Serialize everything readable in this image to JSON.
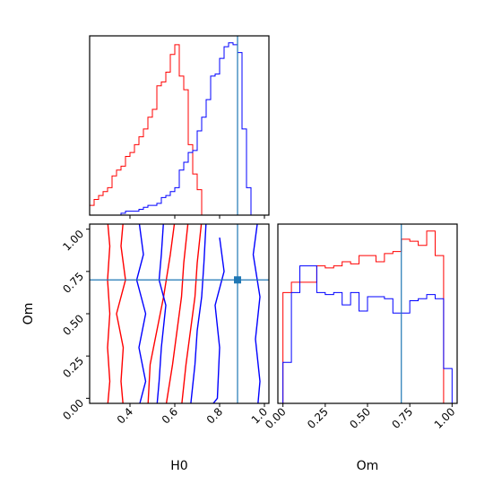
{
  "chart_data": {
    "type": "corner",
    "parameters": [
      "H0",
      "Om"
    ],
    "truth": {
      "H0": 0.88,
      "Om": 0.7
    },
    "colors": {
      "red_series": "#ff0000",
      "blue_series": "#0000ff",
      "truth": "#1f77b4"
    },
    "axes": {
      "h0_hist": {
        "xlim": [
          0.22,
          1.02
        ],
        "bin_edges": [
          0.22,
          0.24,
          0.26,
          0.28,
          0.3,
          0.32,
          0.34,
          0.36,
          0.38,
          0.4,
          0.42,
          0.44,
          0.46,
          0.48,
          0.5,
          0.52,
          0.54,
          0.56,
          0.58,
          0.6,
          0.62,
          0.64,
          0.66,
          0.68,
          0.7,
          0.72,
          0.74,
          0.76,
          0.78,
          0.8,
          0.82,
          0.84,
          0.86,
          0.88,
          0.9,
          0.92,
          0.94,
          0.96,
          0.98,
          1.0
        ],
        "series": [
          {
            "color": "red",
            "counts": [
              0.05,
              0.08,
              0.1,
              0.12,
              0.14,
              0.2,
              0.23,
              0.25,
              0.3,
              0.32,
              0.36,
              0.4,
              0.44,
              0.5,
              0.54,
              0.66,
              0.68,
              0.73,
              0.82,
              0.87,
              0.71,
              0.64,
              0.36,
              0.21,
              0.13,
              0.0,
              0.0,
              0.0,
              0.0,
              0.0,
              0.0,
              0.0,
              0.0,
              0.0,
              0.0,
              0.0,
              0.0,
              0.0,
              0.0
            ]
          },
          {
            "color": "blue",
            "counts": [
              0.0,
              0.0,
              0.0,
              0.0,
              0.0,
              0.0,
              0.0,
              0.01,
              0.02,
              0.02,
              0.02,
              0.03,
              0.04,
              0.05,
              0.05,
              0.06,
              0.09,
              0.1,
              0.12,
              0.14,
              0.23,
              0.27,
              0.32,
              0.33,
              0.43,
              0.5,
              0.59,
              0.71,
              0.72,
              0.8,
              0.86,
              0.88,
              0.87,
              0.83,
              0.44,
              0.14,
              0.0,
              0.0,
              0.0
            ]
          }
        ]
      },
      "om_hist": {
        "xlim": [
          -0.03,
          1.03
        ],
        "bin_edges": [
          0.0,
          0.05,
          0.1,
          0.15,
          0.2,
          0.25,
          0.3,
          0.35,
          0.4,
          0.45,
          0.5,
          0.55,
          0.6,
          0.65,
          0.7,
          0.75,
          0.8,
          0.85,
          0.9,
          0.95,
          1.0
        ],
        "series": [
          {
            "color": "red",
            "counts": [
              0.54,
              0.59,
              0.59,
              0.59,
              0.67,
              0.66,
              0.67,
              0.69,
              0.68,
              0.72,
              0.72,
              0.69,
              0.73,
              0.74,
              0.8,
              0.79,
              0.77,
              0.84,
              0.72,
              0.0
            ]
          },
          {
            "color": "blue",
            "counts": [
              0.2,
              0.54,
              0.67,
              0.67,
              0.54,
              0.53,
              0.54,
              0.48,
              0.54,
              0.45,
              0.52,
              0.52,
              0.51,
              0.44,
              0.44,
              0.5,
              0.51,
              0.53,
              0.51,
              0.17
            ]
          }
        ]
      },
      "joint": {
        "xlim": [
          0.22,
          1.02
        ],
        "ylim": [
          -0.03,
          1.03
        ],
        "xlabel": "H0",
        "ylabel": "Om",
        "series": [
          {
            "color": "red",
            "contours": [
              [
                [
                  0.3,
                  1.05
                ],
                [
                  0.31,
                  0.9
                ],
                [
                  0.3,
                  0.7
                ],
                [
                  0.31,
                  0.5
                ],
                [
                  0.3,
                  0.3
                ],
                [
                  0.31,
                  0.1
                ],
                [
                  0.3,
                  -0.05
                ]
              ],
              [
                [
                  0.37,
                  1.05
                ],
                [
                  0.36,
                  0.9
                ],
                [
                  0.38,
                  0.7
                ],
                [
                  0.34,
                  0.5
                ],
                [
                  0.37,
                  0.3
                ],
                [
                  0.36,
                  0.1
                ],
                [
                  0.37,
                  -0.05
                ]
              ],
              [
                [
                  0.6,
                  1.05
                ],
                [
                  0.58,
                  0.85
                ],
                [
                  0.55,
                  0.6
                ],
                [
                  0.52,
                  0.4
                ],
                [
                  0.49,
                  0.2
                ],
                [
                  0.48,
                  -0.05
                ]
              ],
              [
                [
                  0.66,
                  1.05
                ],
                [
                  0.64,
                  0.8
                ],
                [
                  0.63,
                  0.6
                ],
                [
                  0.61,
                  0.4
                ],
                [
                  0.59,
                  0.2
                ],
                [
                  0.56,
                  -0.05
                ]
              ],
              [
                [
                  0.72,
                  1.05
                ],
                [
                  0.7,
                  0.8
                ],
                [
                  0.69,
                  0.6
                ],
                [
                  0.67,
                  0.4
                ],
                [
                  0.65,
                  0.2
                ],
                [
                  0.63,
                  -0.05
                ]
              ]
            ]
          },
          {
            "color": "blue",
            "contours": [
              [
                [
                  0.44,
                  1.05
                ],
                [
                  0.46,
                  0.85
                ],
                [
                  0.43,
                  0.7
                ],
                [
                  0.47,
                  0.5
                ],
                [
                  0.44,
                  0.3
                ],
                [
                  0.47,
                  0.1
                ],
                [
                  0.44,
                  -0.05
                ]
              ],
              [
                [
                  0.55,
                  1.05
                ],
                [
                  0.54,
                  0.85
                ],
                [
                  0.53,
                  0.7
                ],
                [
                  0.56,
                  0.55
                ],
                [
                  0.54,
                  0.3
                ],
                [
                  0.53,
                  0.1
                ],
                [
                  0.52,
                  -0.05
                ]
              ],
              [
                [
                  0.74,
                  1.05
                ],
                [
                  0.73,
                  0.8
                ],
                [
                  0.72,
                  0.6
                ],
                [
                  0.7,
                  0.4
                ],
                [
                  0.69,
                  0.2
                ],
                [
                  0.67,
                  -0.05
                ]
              ],
              [
                [
                  0.8,
                  0.95
                ],
                [
                  0.82,
                  0.75
                ],
                [
                  0.78,
                  0.55
                ],
                [
                  0.8,
                  0.3
                ],
                [
                  0.79,
                  0.0
                ],
                [
                  0.76,
                  -0.05
                ]
              ],
              [
                [
                  0.97,
                  1.05
                ],
                [
                  0.95,
                  0.85
                ],
                [
                  0.98,
                  0.6
                ],
                [
                  0.96,
                  0.35
                ],
                [
                  0.98,
                  0.1
                ],
                [
                  0.97,
                  -0.05
                ]
              ]
            ]
          }
        ]
      }
    }
  }
}
